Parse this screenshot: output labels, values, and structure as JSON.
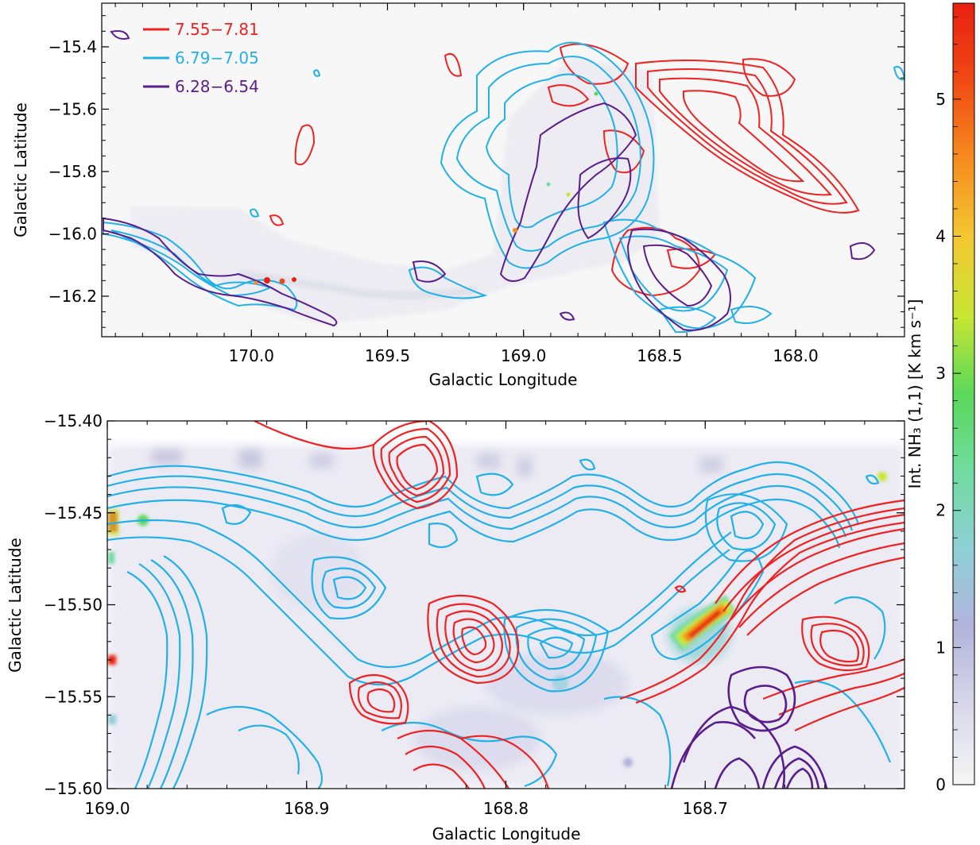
{
  "chart_data": [
    {
      "type": "contour",
      "xlabel": "Galactic Longitude",
      "ylabel": "Galactic Latitude",
      "xlim": [
        170.55,
        167.6
      ],
      "ylim": [
        -16.33,
        -15.26
      ],
      "x_ticks": [
        {
          "value": 170.0,
          "label": "170.0"
        },
        {
          "value": 169.5,
          "label": "169.5"
        },
        {
          "value": 169.0,
          "label": "169.0"
        },
        {
          "value": 168.5,
          "label": "168.5"
        },
        {
          "value": 168.0,
          "label": "168.0"
        }
      ],
      "y_ticks": [
        {
          "value": -15.4,
          "label": "−15.4"
        },
        {
          "value": -15.6,
          "label": "−15.6"
        },
        {
          "value": -15.8,
          "label": "−15.8"
        },
        {
          "value": -16.0,
          "label": "−16.0"
        },
        {
          "value": -16.2,
          "label": "−16.2"
        }
      ],
      "legend_position": "top-left",
      "series": [
        {
          "name": "7.55−7.81",
          "color": "#ee2222"
        },
        {
          "name": "6.79−7.05",
          "color": "#22b0e8"
        },
        {
          "name": "6.28−6.54",
          "color": "#5a1e8c"
        }
      ]
    },
    {
      "type": "contour",
      "xlabel": "Galactic Longitude",
      "ylabel": "Galactic Latitude",
      "xlim": [
        169.0,
        168.6
      ],
      "ylim": [
        -15.6,
        -15.4
      ],
      "x_ticks": [
        {
          "value": 169.0,
          "label": "169.0"
        },
        {
          "value": 168.9,
          "label": "168.9"
        },
        {
          "value": 168.8,
          "label": "168.8"
        },
        {
          "value": 168.7,
          "label": "168.7"
        }
      ],
      "y_ticks": [
        {
          "value": -15.4,
          "label": "−15.40"
        },
        {
          "value": -15.45,
          "label": "−15.45"
        },
        {
          "value": -15.5,
          "label": "−15.50"
        },
        {
          "value": -15.55,
          "label": "−15.55"
        },
        {
          "value": -15.6,
          "label": "−15.60"
        }
      ]
    }
  ],
  "colorbar": {
    "label": "Int. NH₃ (1,1) [K km s⁻¹]",
    "range": [
      0,
      5.7
    ],
    "ticks": [
      {
        "value": 0,
        "label": "0"
      },
      {
        "value": 1,
        "label": "1"
      },
      {
        "value": 2,
        "label": "2"
      },
      {
        "value": 3,
        "label": "3"
      },
      {
        "value": 4,
        "label": "4"
      },
      {
        "value": 5,
        "label": "5"
      }
    ],
    "colors": [
      "#f6f6f6",
      "#d8d8ea",
      "#b4b4dc",
      "#8fcfd8",
      "#70dca0",
      "#5ad85a",
      "#c8e632",
      "#f4c832",
      "#f68c1e",
      "#f04a14",
      "#e82010"
    ]
  }
}
